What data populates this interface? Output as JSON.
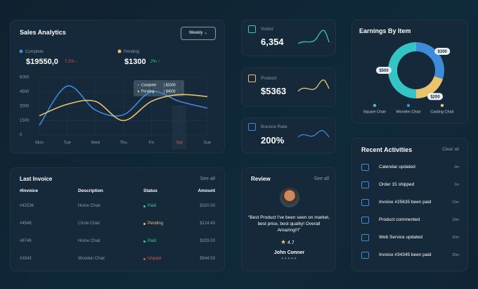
{
  "sales": {
    "title": "Sales Analytics",
    "dropdown": "Weekly",
    "complete_value": "$19550,0",
    "complete_change": "7.2% ↓",
    "pending_value": "$1300",
    "pending_change": "2% ↑"
  },
  "chart_data": [
    {
      "type": "line",
      "categories": [
        "Mon",
        "Tue",
        "Wed",
        "Thu",
        "Fri",
        "Sat",
        "Sun"
      ],
      "series": [
        {
          "name": "Complete",
          "color": "#3d8bd9",
          "values": [
            1000,
            5100,
            2600,
            2100,
            4500,
            3500,
            2800
          ]
        },
        {
          "name": "Pending",
          "color": "#e8c56d",
          "values": [
            2000,
            3200,
            3500,
            1500,
            3500,
            4200,
            4000
          ]
        }
      ],
      "ylim": [
        0,
        6000
      ],
      "yticks": [
        0,
        1500,
        3000,
        4500,
        6000
      ],
      "grid": true,
      "tooltip": [
        [
          "Complete",
          "| $1500"
        ],
        [
          "Pending",
          "| $4500"
        ]
      ]
    },
    {
      "type": "pie",
      "title": "Earnings By Item",
      "categories": [
        "Square Chair",
        "Wooden Chair",
        "Casting Chair"
      ],
      "values": [
        500,
        300,
        200
      ],
      "value_labels": [
        "$500",
        "$300",
        "$200"
      ],
      "colors": [
        "#35c4c4",
        "#3d8bd9",
        "#e8c56d"
      ]
    }
  ],
  "stats": [
    {
      "label": "Visitor",
      "value": "6,354"
    },
    {
      "label": "Product",
      "value": "$5363"
    },
    {
      "label": "Bounce Rate",
      "value": "200%"
    }
  ],
  "invoice": {
    "title": "Last Invoice",
    "link": "See all",
    "header": [
      "#Invoice",
      "Description",
      "Status",
      "Amount"
    ],
    "rows": [
      [
        "#42536",
        "Home Chair",
        "Paid",
        "$320.00"
      ],
      [
        "#4546",
        "Circle Chair",
        "Pending",
        "$124.43"
      ],
      [
        "#8746",
        "Home Chair",
        "Paid",
        "$329.00"
      ],
      [
        "#3343",
        "Wooden Chair",
        "Unpaid",
        "$544.53"
      ]
    ]
  },
  "review": {
    "title": "Review",
    "link": "See all",
    "quote": "“Best Product I've been seen on market, best price, best quality! Overall Amazing!!!”",
    "rating": "4.7",
    "name": "John Conner"
  },
  "activities": {
    "title": "Recent Activities",
    "link": "Clear all",
    "items": [
      [
        "Calendar updated",
        "3m"
      ],
      [
        "Order 15 shipped",
        "1m"
      ],
      [
        "Invoice #25635 been paid",
        "15m"
      ],
      [
        "Product commented",
        "18m"
      ],
      [
        "Web Service updated",
        "20m"
      ],
      [
        "Invoice #34345 been paid",
        "25m"
      ]
    ]
  }
}
